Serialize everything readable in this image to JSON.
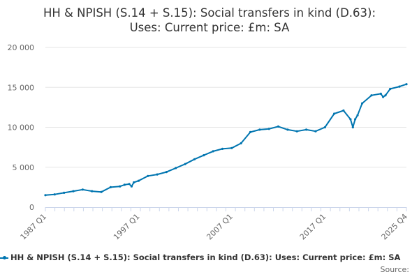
{
  "colors": {
    "series": "#0075b0",
    "grid": "#e6e6e6",
    "axis": "#ccd6eb",
    "text": "#333333",
    "muted": "#666666"
  },
  "title_lines": [
    "HH & NPISH (S.14 + S.15): Social transfers in kind (D.63):",
    "Uses: Current price: £m: SA"
  ],
  "legend_label": "HH & NPISH (S.14 + S.15): Social transfers in kind (D.63): Uses: Current price: £m: SA",
  "source_label": "Source:",
  "chart_data": {
    "type": "line",
    "title": "HH & NPISH (S.14 + S.15): Social transfers in kind (D.63): Uses: Current price: £m: SA",
    "xlabel": "",
    "ylabel": "",
    "ylim": [
      0,
      20000
    ],
    "yticks": [
      0,
      5000,
      10000,
      15000,
      20000
    ],
    "ytick_labels": [
      "0",
      "5 000",
      "10 000",
      "15 000",
      "20 000"
    ],
    "xticks": [
      "1987 Q1",
      "1997 Q1",
      "2007 Q1",
      "2017 Q1",
      "2025 Q4"
    ],
    "grid": true,
    "legend": "bottom",
    "series": [
      {
        "name": "HH & NPISH (S.14 + S.15): Social transfers in kind (D.63): Uses: Current price: £m: SA",
        "x": [
          "1987 Q1",
          "1988 Q1",
          "1989 Q1",
          "1990 Q1",
          "1991 Q1",
          "1992 Q1",
          "1993 Q1",
          "1994 Q1",
          "1995 Q1",
          "1995 Q3",
          "1996 Q1",
          "1996 Q2",
          "1996 Q3",
          "1997 Q1",
          "1998 Q1",
          "1999 Q1",
          "2000 Q1",
          "2001 Q1",
          "2002 Q1",
          "2003 Q1",
          "2004 Q1",
          "2005 Q1",
          "2006 Q1",
          "2007 Q1",
          "2008 Q1",
          "2009 Q1",
          "2010 Q1",
          "2011 Q1",
          "2012 Q1",
          "2013 Q1",
          "2014 Q1",
          "2015 Q1",
          "2016 Q1",
          "2017 Q1",
          "2018 Q1",
          "2019 Q1",
          "2019 Q4",
          "2020 Q1",
          "2020 Q2",
          "2020 Q3",
          "2021 Q1",
          "2022 Q1",
          "2023 Q1",
          "2023 Q2",
          "2023 Q3",
          "2024 Q1",
          "2025 Q1",
          "2025 Q4"
        ],
        "values": [
          1500,
          1600,
          1800,
          2000,
          2200,
          2000,
          1900,
          2500,
          2600,
          2800,
          2900,
          2600,
          3100,
          3300,
          3900,
          4100,
          4400,
          4900,
          5400,
          6000,
          6500,
          7000,
          7300,
          7400,
          8000,
          9400,
          9700,
          9800,
          10100,
          9700,
          9500,
          9700,
          9500,
          10000,
          11700,
          12100,
          11000,
          10000,
          11000,
          11500,
          13000,
          14000,
          14200,
          13800,
          14000,
          14800,
          15100,
          15400
        ]
      }
    ]
  }
}
